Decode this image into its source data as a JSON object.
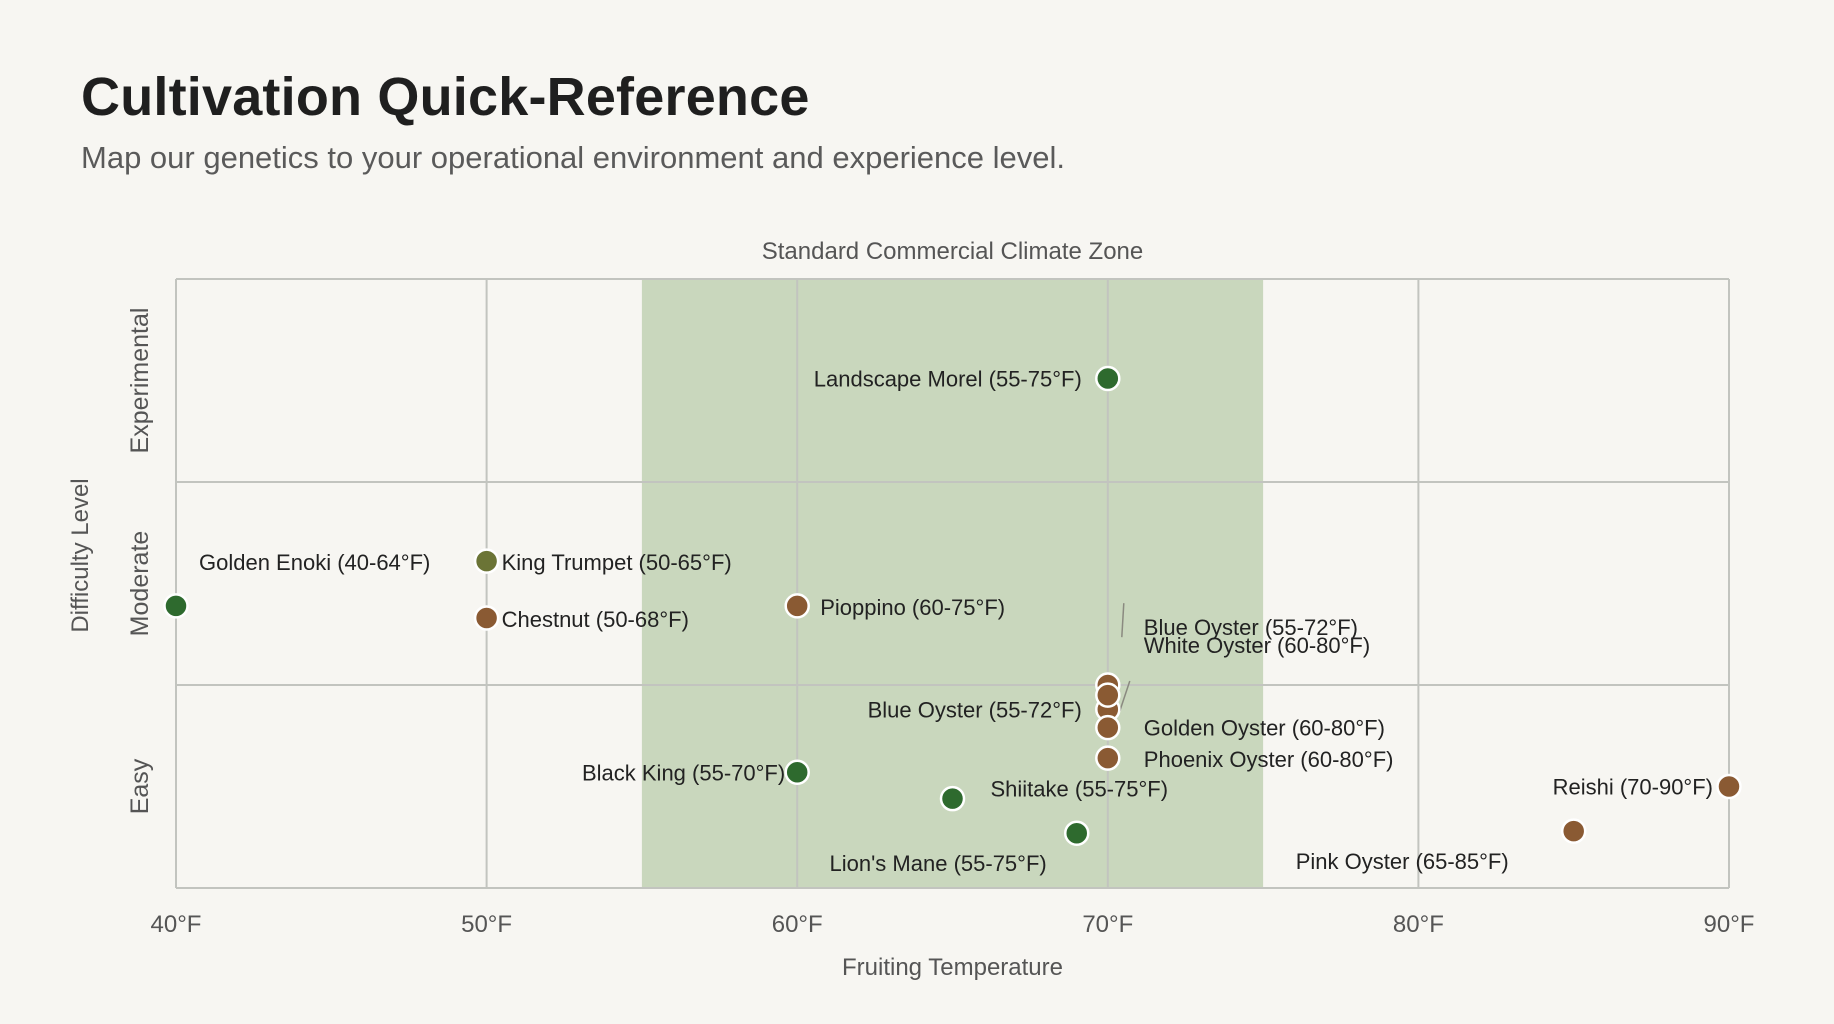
{
  "header": {
    "title": "Cultivation Quick-Reference",
    "subtitle": "Map our genetics to your operational environment and experience level."
  },
  "colors": {
    "background": "#f7f6f2",
    "zone_fill": "#c9d7bd",
    "grid": "#c2c4bf",
    "green_point": "#2e6a2e",
    "brown_point": "#8a5a33",
    "olive_point": "#6b7436"
  },
  "chart_data": {
    "type": "scatter",
    "xlabel": "Fruiting Temperature",
    "ylabel": "Difficulty Level",
    "xlim": [
      40,
      90
    ],
    "x_ticks": [
      {
        "value": 40,
        "label": "40°F"
      },
      {
        "value": 50,
        "label": "50°F"
      },
      {
        "value": 60,
        "label": "60°F"
      },
      {
        "value": 70,
        "label": "70°F"
      },
      {
        "value": 80,
        "label": "80°F"
      },
      {
        "value": 90,
        "label": "90°F"
      }
    ],
    "ylim": [
      0,
      3
    ],
    "y_categories": [
      "Easy",
      "Moderate",
      "Experimental"
    ],
    "grid": true,
    "zone": {
      "label": "Standard Commercial Climate Zone",
      "x_start": 55,
      "x_end": 75
    },
    "points": [
      {
        "label": "Landscape Morel (55-75°F)",
        "x": 70,
        "y": 2.51,
        "color": "green"
      },
      {
        "label": "Golden Enoki (40-64°F)",
        "x": 40,
        "y": 1.39,
        "color": "green"
      },
      {
        "label": "King Trumpet (50-65°F)",
        "x": 50,
        "y": 1.61,
        "color": "olive"
      },
      {
        "label": "Pioppino (60-75°F)",
        "x": 60,
        "y": 1.39,
        "color": "brown"
      },
      {
        "label": "Chestnut (50-68°F)",
        "x": 50,
        "y": 1.33,
        "color": "brown"
      },
      {
        "label": "Blue Oyster (55-72°F)",
        "x": 70,
        "y": 0.88,
        "color": "brown"
      },
      {
        "label": "White Oyster (60-80°F)",
        "x": 70,
        "y": 1.0,
        "color": "brown"
      },
      {
        "label": "Golden Oyster (60-80°F)",
        "x": 70,
        "y": 0.79,
        "color": "brown"
      },
      {
        "label": "Phoenix Oyster (60-80°F)",
        "x": 70,
        "y": 0.64,
        "color": "brown"
      },
      {
        "label": "Blue Oyster (55-72°F)",
        "x": 70,
        "y": 0.95,
        "color": "brown"
      },
      {
        "label": "Black King (55-70°F)",
        "x": 60,
        "y": 0.57,
        "color": "green"
      },
      {
        "label": "Shiitake (55-75°F)",
        "x": 65,
        "y": 0.44,
        "color": "green"
      },
      {
        "label": "Lion's Mane (55-75°F)",
        "x": 69,
        "y": 0.27,
        "color": "green"
      },
      {
        "label": "Reishi (70-90°F)",
        "x": 90,
        "y": 0.5,
        "color": "brown"
      },
      {
        "label": "Pink Oyster (65-85°F)",
        "x": 85,
        "y": 0.28,
        "color": "brown"
      }
    ]
  }
}
